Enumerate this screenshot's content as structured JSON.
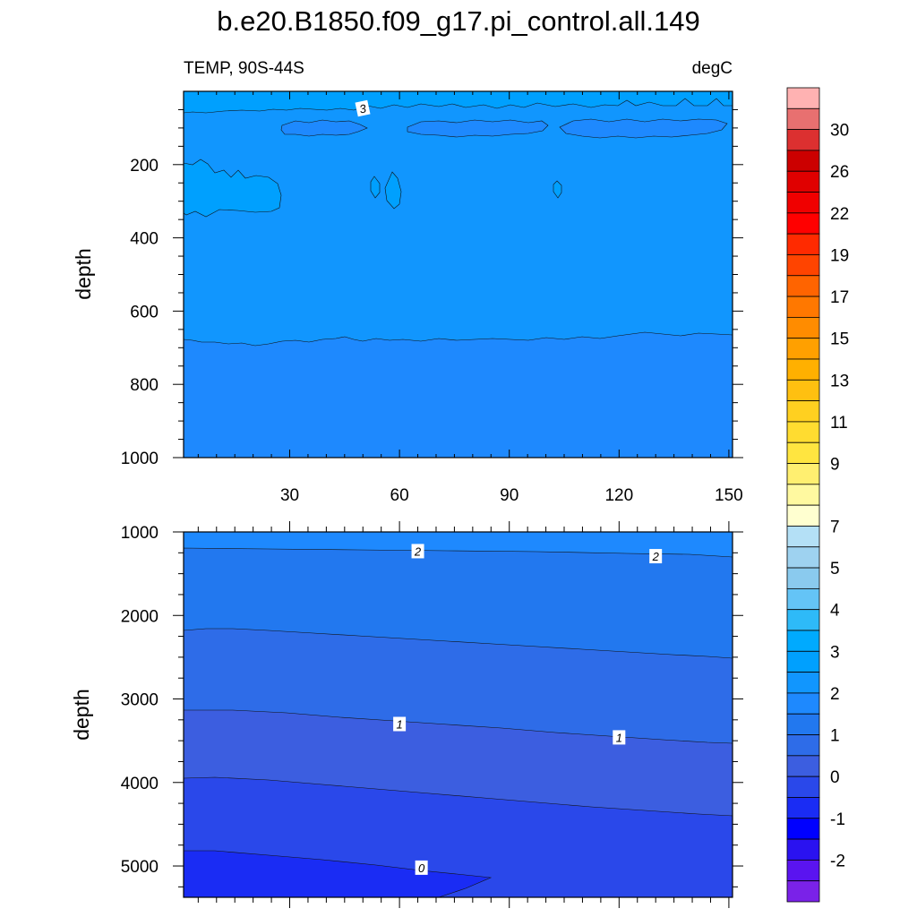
{
  "title": "b.e20.B1850.f09_g17.pi_control.all.149",
  "left_subtitle": "TEMP, 90S-44S",
  "right_subtitle": "degC",
  "chart_data": [
    {
      "type": "contour",
      "panel": "upper",
      "ylabel": "depth",
      "xlim": [
        1,
        151
      ],
      "ylim": [
        0,
        1000
      ],
      "y_reversed": true,
      "x_ticks": [
        30,
        60,
        90,
        120,
        150
      ],
      "y_ticks": [
        200,
        400,
        600,
        800,
        1000
      ],
      "contour_labels": [
        {
          "value": "3",
          "x": 50,
          "y": 45
        }
      ],
      "bands": [
        {
          "range": "3-3.5",
          "color": "#00a0fe",
          "description": "near surface (0-60 m) and pockets at 200-340 m, x 1-28"
        },
        {
          "range": "2.5-3",
          "color": "#1196fe",
          "description": "bulk of 60-690 m layer"
        },
        {
          "range": "2-2.5",
          "color": "#1e89fe",
          "description": "patches near 100-130 m and below ~690 m"
        }
      ]
    },
    {
      "type": "contour",
      "panel": "lower",
      "ylabel": "depth",
      "xlim": [
        1,
        151
      ],
      "ylim": [
        1000,
        5375
      ],
      "y_reversed": true,
      "y_ticks": [
        1000,
        2000,
        3000,
        4000,
        5000
      ],
      "contour_lines": [
        {
          "level": 2,
          "depth_at_xmin": 1200,
          "depth_at_xmax": 1300
        },
        {
          "level": 1.5,
          "depth_at_xmin": 2150,
          "depth_at_xmax": 2500
        },
        {
          "level": 1,
          "depth_at_xmin": 3130,
          "depth_at_xmax": 3520
        },
        {
          "level": 0.5,
          "depth_at_xmin": 3950,
          "depth_at_xmax": 4400
        }
      ],
      "contour_labels": [
        {
          "value": "2",
          "x": 65,
          "y": 1230
        },
        {
          "value": "2",
          "x": 130,
          "y": 1290
        },
        {
          "value": "1",
          "x": 60,
          "y": 3300
        },
        {
          "value": "1",
          "x": 120,
          "y": 3460
        },
        {
          "value": "0",
          "x": 66,
          "y": 5020
        }
      ],
      "bands": [
        {
          "range": "2-2.5",
          "color": "#1e89fe"
        },
        {
          "range": "1.5-2",
          "color": "#2278ef"
        },
        {
          "range": "1-1.5",
          "color": "#2e6ce8"
        },
        {
          "range": "0.5-1",
          "color": "#3c5ee0"
        },
        {
          "range": "0-0.5",
          "color": "#2a48ea"
        },
        {
          "range": "-0.5-0",
          "color": "#1a2cf4"
        }
      ]
    }
  ],
  "colorbar": {
    "label_values": [
      "30",
      "26",
      "22",
      "19",
      "17",
      "15",
      "13",
      "11",
      "9",
      "7",
      "5",
      "4",
      "3",
      "2",
      "1",
      "0",
      "-1",
      "-2"
    ],
    "colors": [
      "#ffb2b2",
      "#e87070",
      "#dc3030",
      "#cc0000",
      "#e00000",
      "#f00000",
      "#ff0000",
      "#ff2a00",
      "#ff4400",
      "#ff6400",
      "#ff7800",
      "#ff8c00",
      "#ffa000",
      "#ffb000",
      "#ffc010",
      "#ffd020",
      "#ffdc30",
      "#ffe540",
      "#ffef70",
      "#fff9a0",
      "#ffffd0",
      "#b4e0f6",
      "#9ed2f0",
      "#8acaee",
      "#64c4f6",
      "#2ebaf8",
      "#00aafe",
      "#00a0fe",
      "#1196fe",
      "#1e89fe",
      "#2278ef",
      "#2e6ce8",
      "#3c5ee0",
      "#2a48ea",
      "#1a2cf4",
      "#0000ff",
      "#2a12f0",
      "#5a14f0",
      "#7a22e8"
    ]
  }
}
